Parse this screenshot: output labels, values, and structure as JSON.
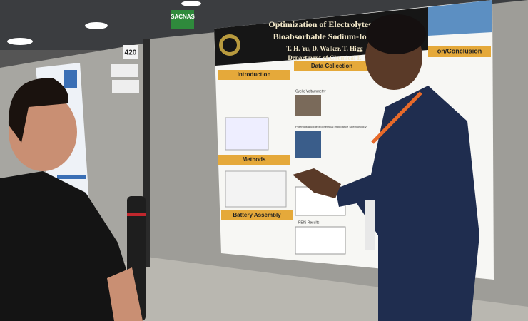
{
  "sign": "SACNAS",
  "booth_number": "420",
  "poster": {
    "title_lines": [
      "Optimization of Electrolytes for Use in",
      "Bioabsorbable Sodium-Ion Ba"
    ],
    "authors": "T. H. Yu, D. Walker, T. Higg",
    "department": "Department of Chemical E",
    "sections": [
      "Introduction",
      "Data Collection",
      "Methods",
      "Battery Assembly",
      "on/Conclusion"
    ],
    "subheadings": [
      "Cyclic Voltammetry",
      "Potentiostatic Electrochemical Impedance Spectroscopy",
      "PEIS Results"
    ]
  }
}
